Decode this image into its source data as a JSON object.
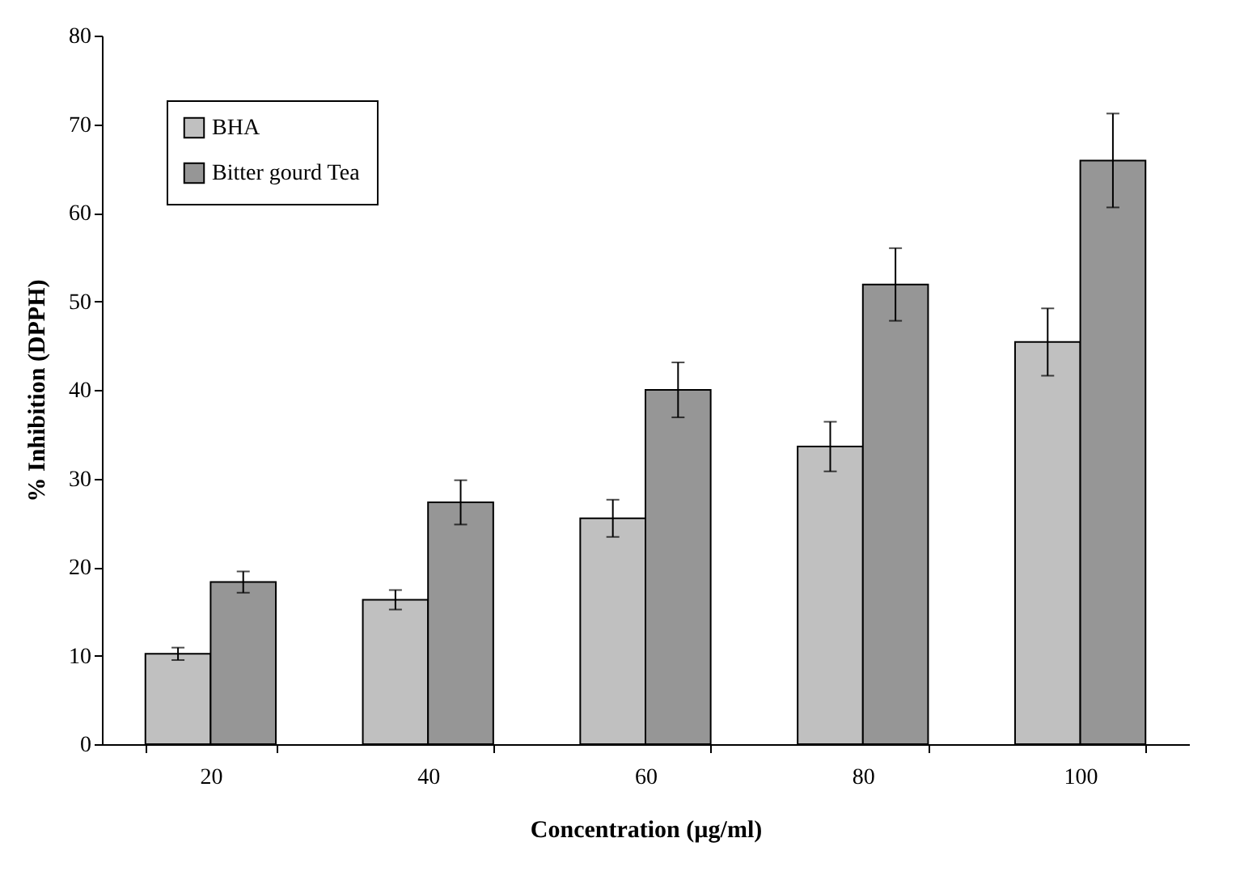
{
  "chart_data": {
    "type": "bar",
    "xlabel": "Concentration (µg/ml)",
    "ylabel": "% Inhibition (DPPH)",
    "categories": [
      "20",
      "40",
      "60",
      "80",
      "100"
    ],
    "series": [
      {
        "name": "BHA",
        "color": "#c0c0c0",
        "values": [
          10.2,
          16.3,
          25.5,
          33.6,
          45.4
        ],
        "errors": [
          0.7,
          1.1,
          2.1,
          2.8,
          3.8
        ]
      },
      {
        "name": "Bitter gourd Tea",
        "color": "#969696",
        "values": [
          18.3,
          27.3,
          40,
          51.9,
          65.9
        ],
        "errors": [
          1.2,
          2.5,
          3.1,
          4.1,
          5.3
        ]
      }
    ],
    "ylim": [
      0,
      80
    ],
    "yticks": [
      0,
      10,
      20,
      30,
      40,
      50,
      60,
      70,
      80
    ],
    "grid": false,
    "legend": "top left"
  }
}
